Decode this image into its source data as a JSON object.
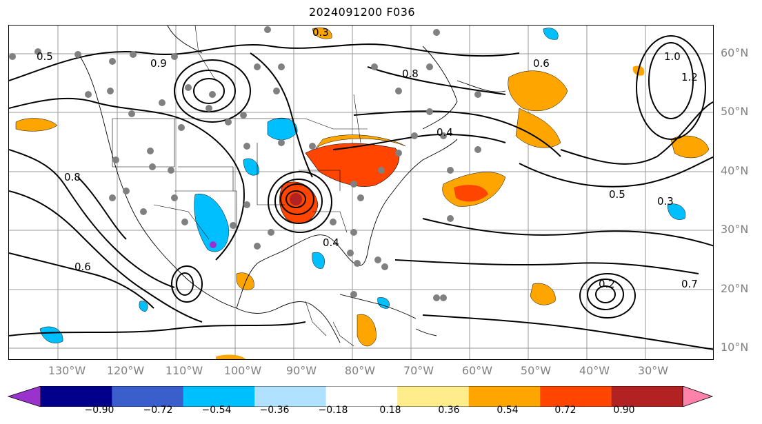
{
  "title": "2024091200 F036",
  "lat_labels": [
    "60°N",
    "50°N",
    "40°N",
    "30°N",
    "20°N",
    "10°N"
  ],
  "lon_labels": [
    "130°W",
    "120°W",
    "110°W",
    "100°W",
    "90°W",
    "80°W",
    "70°W",
    "60°W",
    "50°W",
    "40°W",
    "30°W"
  ],
  "colorbar": {
    "ticks": [
      "−0.90",
      "−0.72",
      "−0.54",
      "−0.36",
      "−0.18",
      "0.18",
      "0.36",
      "0.54",
      "0.72",
      "0.90"
    ],
    "colors": [
      "#9a32cd",
      "#00008b",
      "#3a5fcd",
      "#00bfff",
      "#b0e2ff",
      "#ffffff",
      "#ffec8b",
      "#ffa500",
      "#ff4500",
      "#b22222",
      "#ff82ab"
    ]
  },
  "contour_labels": [
    {
      "text": "0.5"
    },
    {
      "text": "0.6"
    },
    {
      "text": "0.8"
    },
    {
      "text": "0.4"
    },
    {
      "text": "0.3"
    },
    {
      "text": "1.0"
    },
    {
      "text": "0.7"
    },
    {
      "text": "1.2"
    },
    {
      "text": "0.2"
    },
    {
      "text": "0.6"
    },
    {
      "text": "0.5"
    },
    {
      "text": "0.4"
    },
    {
      "text": "0.3"
    },
    {
      "text": "0.8"
    },
    {
      "text": "0.9"
    }
  ]
}
